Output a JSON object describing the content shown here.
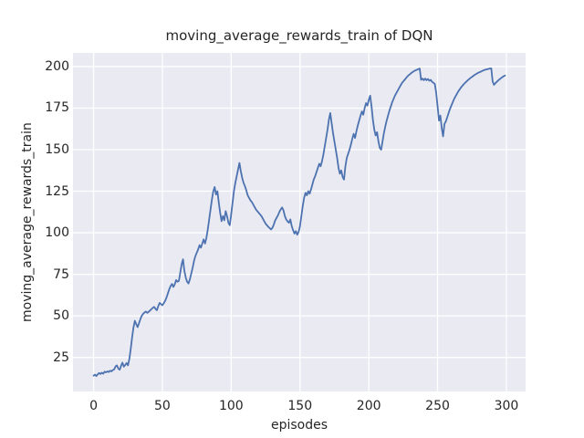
{
  "figure": {
    "background": "#ffffff",
    "plot_background": "#eaeaf2",
    "grid_color": "#ffffff",
    "text_color": "#262626"
  },
  "chart_data": {
    "type": "line",
    "title": "moving_average_rewards_train of DQN",
    "xlabel": "episodes",
    "ylabel": "moving_average_rewards_train",
    "x_ticks": [
      0,
      50,
      100,
      150,
      200,
      250,
      300
    ],
    "y_ticks": [
      25,
      50,
      75,
      100,
      125,
      150,
      175,
      200
    ],
    "xlim": [
      -14.95,
      313.95
    ],
    "ylim": [
      4.5,
      208.2
    ],
    "grid": true,
    "legend": false,
    "series": [
      {
        "name": "DQN moving average rewards (train)",
        "color": "#4c72b0",
        "line_width": 1.8,
        "points": [
          [
            0,
            14
          ],
          [
            1,
            14.6
          ],
          [
            2,
            13.8
          ],
          [
            3,
            14.8
          ],
          [
            4,
            15.6
          ],
          [
            5,
            15.0
          ],
          [
            6,
            15.8
          ],
          [
            7,
            15.2
          ],
          [
            8,
            16.4
          ],
          [
            9,
            16.0
          ],
          [
            10,
            16.6
          ],
          [
            11,
            16.2
          ],
          [
            12,
            17.0
          ],
          [
            13,
            16.6
          ],
          [
            14,
            17.4
          ],
          [
            15,
            17.8
          ],
          [
            16,
            19.6
          ],
          [
            17,
            20.2
          ],
          [
            18,
            18.2
          ],
          [
            19,
            17.6
          ],
          [
            20,
            20.0
          ],
          [
            21,
            21.8
          ],
          [
            22,
            19.4
          ],
          [
            23,
            20.4
          ],
          [
            24,
            21.6
          ],
          [
            25,
            20.2
          ],
          [
            26,
            24.0
          ],
          [
            27,
            30.0
          ],
          [
            28,
            37.0
          ],
          [
            29,
            43.0
          ],
          [
            30,
            47.0
          ],
          [
            31,
            45.0
          ],
          [
            32,
            43.2
          ],
          [
            33,
            45.5
          ],
          [
            34,
            48.0
          ],
          [
            35,
            50.0
          ],
          [
            36,
            51.2
          ],
          [
            37,
            52.0
          ],
          [
            38,
            52.6
          ],
          [
            39,
            51.8
          ],
          [
            40,
            52.4
          ],
          [
            41,
            53.2
          ],
          [
            42,
            54.0
          ],
          [
            43,
            54.8
          ],
          [
            44,
            55.4
          ],
          [
            45,
            54.2
          ],
          [
            46,
            53.4
          ],
          [
            47,
            55.8
          ],
          [
            48,
            57.8
          ],
          [
            49,
            57.0
          ],
          [
            50,
            56.4
          ],
          [
            51,
            57.6
          ],
          [
            52,
            59.0
          ],
          [
            53,
            61.0
          ],
          [
            54,
            63.5
          ],
          [
            55,
            66.0
          ],
          [
            56,
            68.0
          ],
          [
            57,
            69.2
          ],
          [
            58,
            67.4
          ],
          [
            59,
            69.0
          ],
          [
            60,
            71.5
          ],
          [
            61,
            70.5
          ],
          [
            62,
            71.0
          ],
          [
            63,
            76.0
          ],
          [
            64,
            81.0
          ],
          [
            65,
            84.0
          ],
          [
            66,
            77.0
          ],
          [
            67,
            73.0
          ],
          [
            68,
            70.5
          ],
          [
            69,
            69.5
          ],
          [
            70,
            72.0
          ],
          [
            71,
            75.5
          ],
          [
            72,
            79.0
          ],
          [
            73,
            83.0
          ],
          [
            74,
            86.0
          ],
          [
            75,
            88.0
          ],
          [
            76,
            90.0
          ],
          [
            77,
            92.5
          ],
          [
            78,
            91.0
          ],
          [
            79,
            93.5
          ],
          [
            80,
            96.0
          ],
          [
            81,
            93.5
          ],
          [
            82,
            97.0
          ],
          [
            83,
            102.0
          ],
          [
            84,
            108.0
          ],
          [
            85,
            114.0
          ],
          [
            86,
            120.0
          ],
          [
            87,
            125.0
          ],
          [
            88,
            127.5
          ],
          [
            89,
            123.0
          ],
          [
            90,
            125.0
          ],
          [
            91,
            118.0
          ],
          [
            92,
            112.0
          ],
          [
            93,
            107.0
          ],
          [
            94,
            110.0
          ],
          [
            95,
            107.5
          ],
          [
            96,
            113.0
          ],
          [
            97,
            110.0
          ],
          [
            98,
            106.0
          ],
          [
            99,
            104.5
          ],
          [
            100,
            111.0
          ],
          [
            101,
            118.0
          ],
          [
            102,
            125.0
          ],
          [
            103,
            130.0
          ],
          [
            104,
            134.0
          ],
          [
            105,
            138.0
          ],
          [
            106,
            142.0
          ],
          [
            107,
            137.0
          ],
          [
            108,
            133.0
          ],
          [
            109,
            130.0
          ],
          [
            110,
            128.0
          ],
          [
            111,
            125.5
          ],
          [
            112,
            122.5
          ],
          [
            113,
            121.0
          ],
          [
            114,
            119.5
          ],
          [
            115,
            118.5
          ],
          [
            116,
            117.0
          ],
          [
            117,
            115.5
          ],
          [
            118,
            114.0
          ],
          [
            119,
            113.0
          ],
          [
            120,
            112.0
          ],
          [
            121,
            111.0
          ],
          [
            122,
            110.0
          ],
          [
            123,
            108.5
          ],
          [
            124,
            107.0
          ],
          [
            125,
            105.5
          ],
          [
            126,
            104.5
          ],
          [
            127,
            103.5
          ],
          [
            128,
            102.8
          ],
          [
            129,
            102.0
          ],
          [
            130,
            103.0
          ],
          [
            131,
            105.0
          ],
          [
            132,
            107.5
          ],
          [
            133,
            109.0
          ],
          [
            134,
            110.5
          ],
          [
            135,
            112.5
          ],
          [
            136,
            114.0
          ],
          [
            137,
            115.2
          ],
          [
            138,
            113.5
          ],
          [
            139,
            110.0
          ],
          [
            140,
            108.0
          ],
          [
            141,
            106.8
          ],
          [
            142,
            106.0
          ],
          [
            143,
            108.0
          ],
          [
            144,
            104.0
          ],
          [
            145,
            101.5
          ],
          [
            146,
            99.5
          ],
          [
            147,
            101.0
          ],
          [
            148,
            98.8
          ],
          [
            149,
            100.5
          ],
          [
            150,
            104.0
          ],
          [
            151,
            110.0
          ],
          [
            152,
            116.0
          ],
          [
            153,
            121.0
          ],
          [
            154,
            124.0
          ],
          [
            155,
            122.5
          ],
          [
            156,
            125.0
          ],
          [
            157,
            123.5
          ],
          [
            158,
            126.0
          ],
          [
            159,
            129.0
          ],
          [
            160,
            132.0
          ],
          [
            161,
            134.0
          ],
          [
            162,
            136.5
          ],
          [
            163,
            139.0
          ],
          [
            164,
            141.5
          ],
          [
            165,
            140.0
          ],
          [
            166,
            143.0
          ],
          [
            167,
            147.0
          ],
          [
            168,
            152.0
          ],
          [
            169,
            157.0
          ],
          [
            170,
            162.0
          ],
          [
            171,
            168.0
          ],
          [
            172,
            172.0
          ],
          [
            173,
            166.0
          ],
          [
            174,
            160.0
          ],
          [
            175,
            155.0
          ],
          [
            176,
            150.0
          ],
          [
            177,
            145.0
          ],
          [
            178,
            139.0
          ],
          [
            179,
            135.5
          ],
          [
            180,
            137.5
          ],
          [
            181,
            133.5
          ],
          [
            182,
            132.0
          ],
          [
            183,
            140.0
          ],
          [
            184,
            145.0
          ],
          [
            185,
            147.5
          ],
          [
            186,
            150.0
          ],
          [
            187,
            153.0
          ],
          [
            188,
            156.5
          ],
          [
            189,
            159.5
          ],
          [
            190,
            157.0
          ],
          [
            191,
            161.0
          ],
          [
            192,
            164.5
          ],
          [
            193,
            167.5
          ],
          [
            194,
            170.5
          ],
          [
            195,
            173.0
          ],
          [
            196,
            171.0
          ],
          [
            197,
            175.0
          ],
          [
            198,
            178.0
          ],
          [
            199,
            176.5
          ],
          [
            200,
            180.0
          ],
          [
            201,
            182.5
          ],
          [
            202,
            176.0
          ],
          [
            203,
            168.0
          ],
          [
            204,
            162.0
          ],
          [
            205,
            158.5
          ],
          [
            206,
            160.5
          ],
          [
            207,
            155.0
          ],
          [
            208,
            151.0
          ],
          [
            209,
            150.0
          ],
          [
            210,
            155.0
          ],
          [
            211,
            160.0
          ],
          [
            212,
            164.0
          ],
          [
            213,
            167.5
          ],
          [
            214,
            170.5
          ],
          [
            215,
            173.5
          ],
          [
            216,
            176.0
          ],
          [
            217,
            178.5
          ],
          [
            218,
            180.5
          ],
          [
            219,
            182.5
          ],
          [
            220,
            184.0
          ],
          [
            221,
            185.5
          ],
          [
            222,
            187.0
          ],
          [
            223,
            188.5
          ],
          [
            224,
            190.0
          ],
          [
            225,
            191.0
          ],
          [
            226,
            192.0
          ],
          [
            227,
            193.0
          ],
          [
            228,
            194.0
          ],
          [
            229,
            194.8
          ],
          [
            230,
            195.5
          ],
          [
            231,
            196.2
          ],
          [
            232,
            196.8
          ],
          [
            233,
            197.3
          ],
          [
            234,
            197.7
          ],
          [
            235,
            198.1
          ],
          [
            236,
            198.5
          ],
          [
            237,
            198.8
          ],
          [
            238,
            192.0
          ],
          [
            239,
            192.8
          ],
          [
            240,
            191.8
          ],
          [
            241,
            192.8
          ],
          [
            242,
            191.8
          ],
          [
            243,
            192.5
          ],
          [
            244,
            191.5
          ],
          [
            245,
            192.0
          ],
          [
            246,
            190.8
          ],
          [
            247,
            190.2
          ],
          [
            248,
            189.5
          ],
          [
            249,
            184.0
          ],
          [
            250,
            176.0
          ],
          [
            251,
            167.5
          ],
          [
            252,
            170.5
          ],
          [
            253,
            163.0
          ],
          [
            254,
            158.0
          ],
          [
            255,
            165.5
          ],
          [
            256,
            167.0
          ],
          [
            257,
            169.5
          ],
          [
            258,
            172.0
          ],
          [
            259,
            174.5
          ],
          [
            260,
            176.5
          ],
          [
            261,
            178.5
          ],
          [
            262,
            180.5
          ],
          [
            263,
            182.0
          ],
          [
            264,
            183.5
          ],
          [
            265,
            185.0
          ],
          [
            266,
            186.2
          ],
          [
            267,
            187.4
          ],
          [
            268,
            188.4
          ],
          [
            269,
            189.4
          ],
          [
            270,
            190.2
          ],
          [
            271,
            191.0
          ],
          [
            272,
            191.8
          ],
          [
            273,
            192.5
          ],
          [
            274,
            193.2
          ],
          [
            275,
            193.8
          ],
          [
            276,
            194.4
          ],
          [
            277,
            195.0
          ],
          [
            278,
            195.5
          ],
          [
            279,
            196.0
          ],
          [
            280,
            196.4
          ],
          [
            281,
            196.8
          ],
          [
            282,
            197.2
          ],
          [
            283,
            197.6
          ],
          [
            284,
            197.9
          ],
          [
            285,
            198.2
          ],
          [
            286,
            198.4
          ],
          [
            287,
            198.6
          ],
          [
            288,
            198.8
          ],
          [
            289,
            198.9
          ],
          [
            290,
            191.0
          ],
          [
            291,
            189.0
          ],
          [
            292,
            190.0
          ],
          [
            293,
            190.8
          ],
          [
            294,
            191.6
          ],
          [
            295,
            192.3
          ],
          [
            296,
            193.0
          ],
          [
            297,
            193.6
          ],
          [
            298,
            194.2
          ],
          [
            299,
            194.6
          ]
        ]
      }
    ]
  }
}
